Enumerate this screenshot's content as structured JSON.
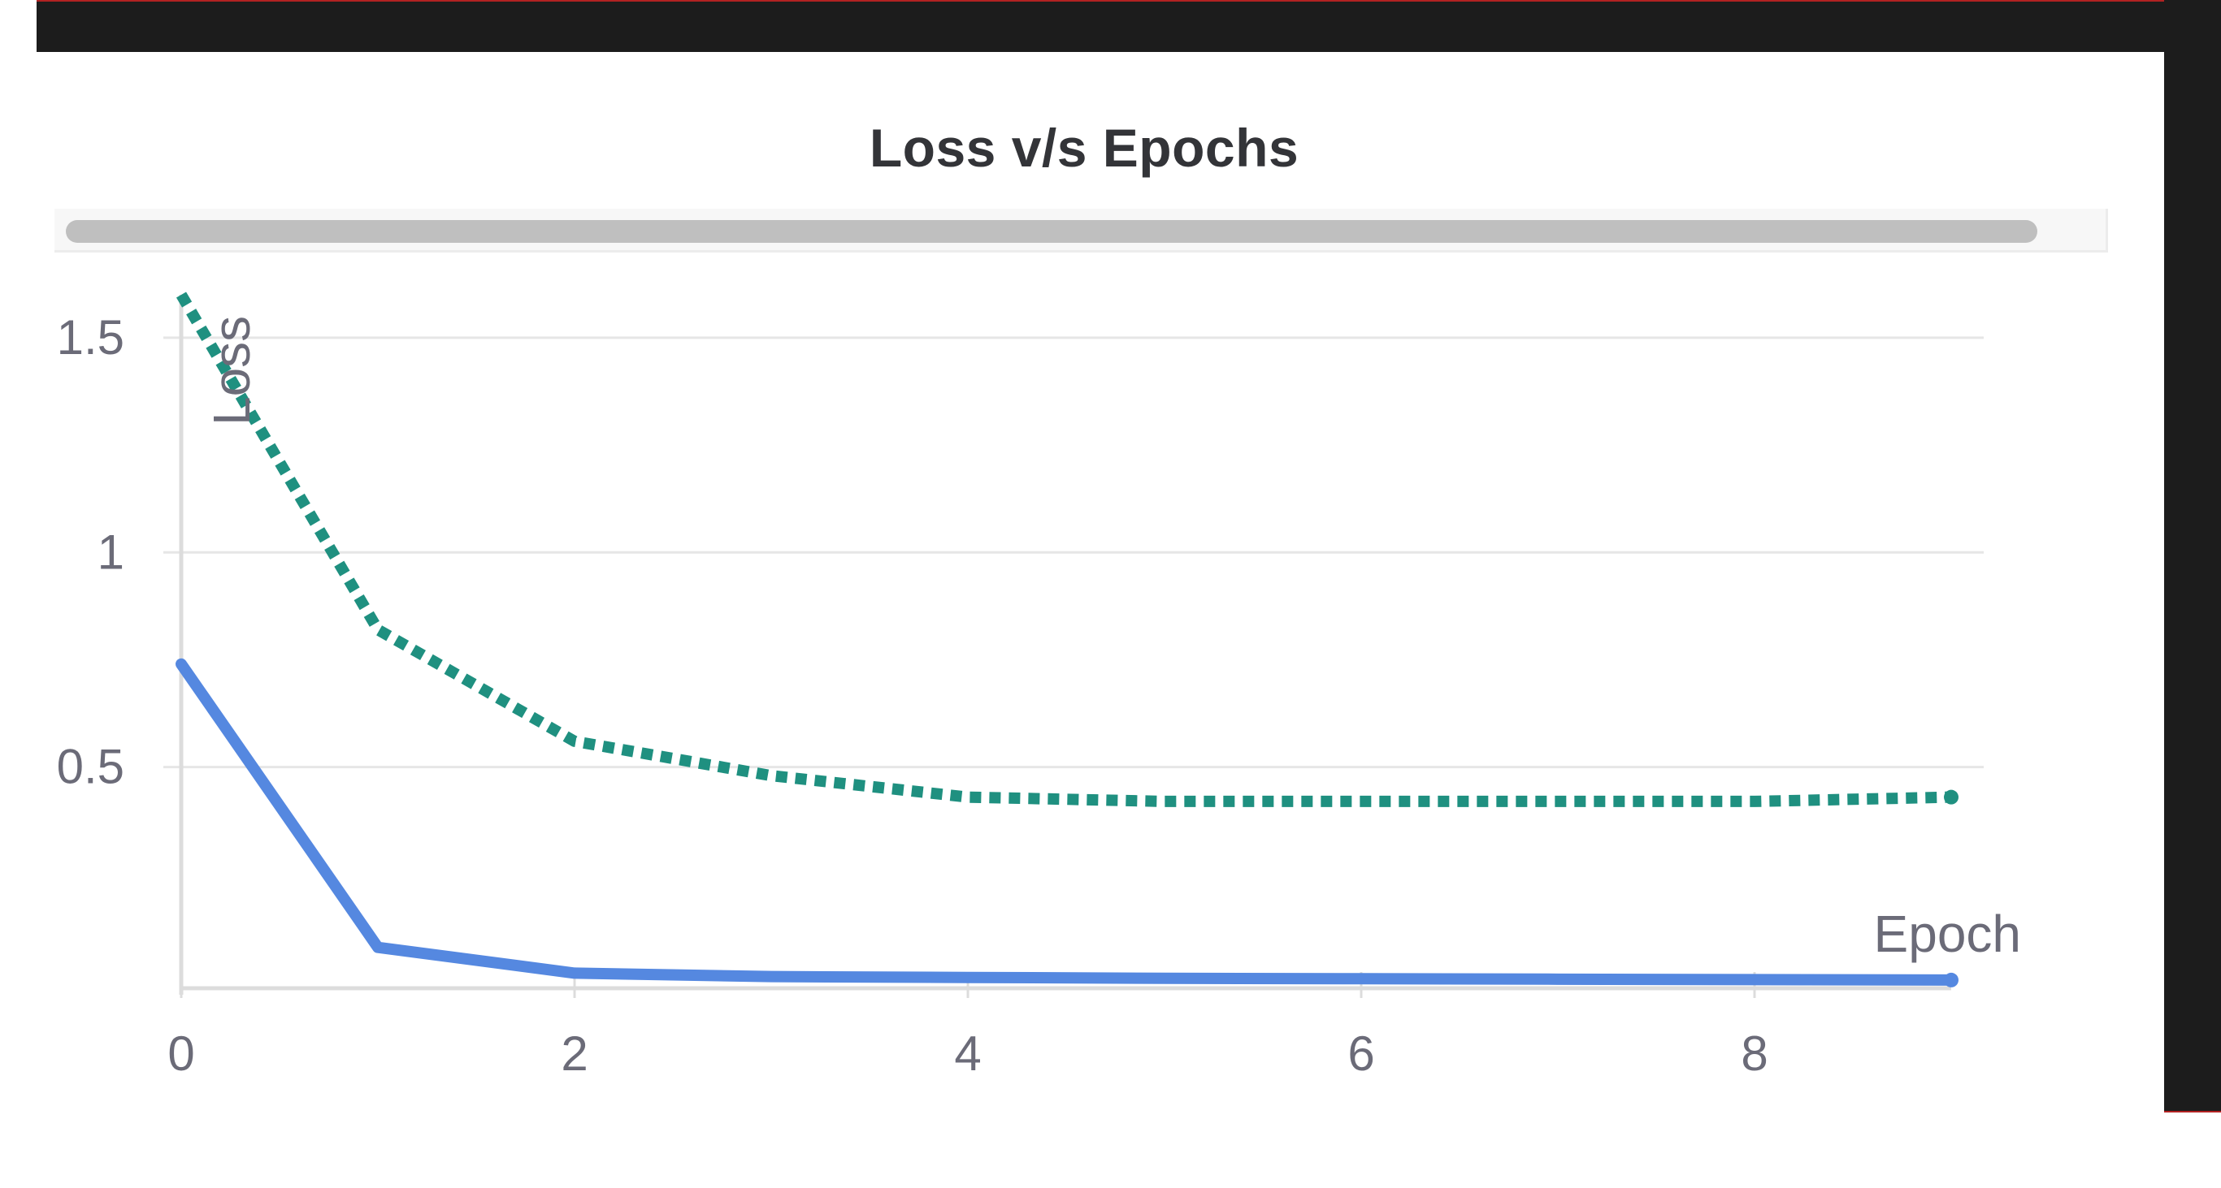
{
  "chart_data": {
    "type": "line",
    "title": "Loss v/s Epochs",
    "xlabel": "Epoch",
    "ylabel": "Loss",
    "x_ticks": [
      "0",
      "2",
      "4",
      "6",
      "8"
    ],
    "y_ticks": [
      "0.5",
      "1",
      "1.5"
    ],
    "x_tick_values": [
      0,
      2,
      4,
      6,
      8
    ],
    "y_tick_values": [
      0.5,
      1,
      1.5
    ],
    "xlim": [
      0,
      9
    ],
    "ylim": [
      0,
      1.6
    ],
    "grid": true,
    "x": [
      0,
      1,
      2,
      3,
      4,
      5,
      6,
      7,
      8,
      9
    ],
    "series": [
      {
        "values": [
          1.6,
          0.82,
          0.56,
          0.48,
          0.43,
          0.42,
          0.42,
          0.42,
          0.42,
          0.43
        ],
        "color": "#1f9080",
        "style": "dotted"
      },
      {
        "values": [
          0.74,
          0.08,
          0.02,
          0.012,
          0.01,
          0.008,
          0.007,
          0.006,
          0.005,
          0.004
        ],
        "color": "#5588e0",
        "style": "solid"
      }
    ]
  },
  "colors": {
    "frame": "#1c1c1c",
    "frame_edge": "#b22222",
    "grid": "#e6e6e6",
    "axis": "#dcdcdc",
    "text": "#6b6b78",
    "title": "#333438"
  }
}
